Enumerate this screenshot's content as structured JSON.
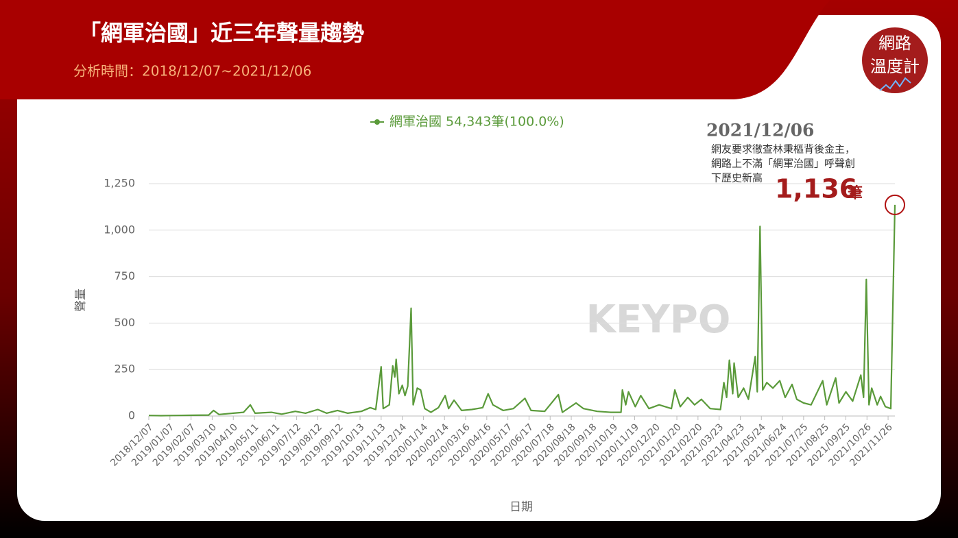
{
  "header": {
    "title": "「網軍治國」近三年聲量趨勢",
    "subtitle": "分析時間：2018/12/07~2021/12/06",
    "logo": [
      "網路",
      "溫度計"
    ]
  },
  "watermark": "KEYPO",
  "chart_data": {
    "type": "line",
    "x_label": "日期",
    "y_label": "聲量",
    "x": [
      "2018/12/07",
      "2018/12/25",
      "2019/01/15",
      "2019/02/10",
      "2019/03/05",
      "2019/03/12",
      "2019/03/20",
      "2019/04/10",
      "2019/04/25",
      "2019/05/05",
      "2019/05/12",
      "2019/06/05",
      "2019/06/20",
      "2019/07/10",
      "2019/07/25",
      "2019/08/12",
      "2019/08/25",
      "2019/09/10",
      "2019/09/25",
      "2019/10/15",
      "2019/10/28",
      "2019/11/05",
      "2019/11/13",
      "2019/11/16",
      "2019/11/25",
      "2019/11/30",
      "2019/12/03",
      "2019/12/05",
      "2019/12/09",
      "2019/12/14",
      "2019/12/18",
      "2019/12/22",
      "2019/12/27",
      "2019/12/30",
      "2020/01/05",
      "2020/01/10",
      "2020/01/16",
      "2020/01/25",
      "2020/02/05",
      "2020/02/15",
      "2020/02/20",
      "2020/02/28",
      "2020/03/10",
      "2020/03/25",
      "2020/04/10",
      "2020/04/18",
      "2020/04/25",
      "2020/05/10",
      "2020/05/25",
      "2020/06/11",
      "2020/06/20",
      "2020/07/10",
      "2020/07/30",
      "2020/08/05",
      "2020/08/25",
      "2020/09/05",
      "2020/09/25",
      "2020/10/15",
      "2020/10/30",
      "2020/11/01",
      "2020/11/06",
      "2020/11/10",
      "2020/11/20",
      "2020/11/28",
      "2020/12/10",
      "2020/12/25",
      "2021/01/12",
      "2021/01/17",
      "2021/01/25",
      "2021/02/05",
      "2021/02/15",
      "2021/02/25",
      "2021/03/10",
      "2021/03/25",
      "2021/03/30",
      "2021/04/03",
      "2021/04/07",
      "2021/04/12",
      "2021/04/14",
      "2021/04/20",
      "2021/04/28",
      "2021/05/05",
      "2021/05/15",
      "2021/05/18",
      "2021/05/22",
      "2021/05/26",
      "2021/06/01",
      "2021/06/10",
      "2021/06/20",
      "2021/06/28",
      "2021/07/08",
      "2021/07/15",
      "2021/07/25",
      "2021/08/05",
      "2021/08/22",
      "2021/08/28",
      "2021/09/10",
      "2021/09/15",
      "2021/09/25",
      "2021/10/05",
      "2021/10/17",
      "2021/10/21",
      "2021/10/25",
      "2021/10/29",
      "2021/11/02",
      "2021/11/10",
      "2021/11/15",
      "2021/11/22",
      "2021/11/30",
      "2021/12/06"
    ],
    "series": [
      {
        "name": "網軍治國 54,343筆(100.0%)",
        "color": "#5a9a3a",
        "values": [
          3,
          2,
          3,
          4,
          5,
          30,
          8,
          15,
          20,
          60,
          15,
          20,
          10,
          25,
          15,
          35,
          15,
          30,
          15,
          25,
          45,
          35,
          265,
          40,
          60,
          270,
          210,
          305,
          120,
          165,
          110,
          160,
          580,
          60,
          150,
          140,
          40,
          20,
          45,
          110,
          40,
          85,
          30,
          35,
          45,
          120,
          60,
          30,
          40,
          95,
          30,
          25,
          115,
          20,
          70,
          40,
          25,
          20,
          20,
          140,
          60,
          130,
          50,
          110,
          40,
          60,
          40,
          140,
          50,
          100,
          60,
          90,
          40,
          35,
          180,
          100,
          300,
          120,
          285,
          100,
          150,
          90,
          320,
          130,
          1020,
          140,
          180,
          150,
          190,
          100,
          170,
          90,
          70,
          60,
          190,
          60,
          205,
          70,
          130,
          80,
          220,
          100,
          735,
          60,
          150,
          60,
          105,
          50,
          40,
          1136
        ]
      }
    ],
    "xlim": [
      "2018/12/07",
      "2021/12/06"
    ],
    "xticks": [
      "2018/12/07",
      "2019/01/07",
      "2019/02/07",
      "2019/03/10",
      "2019/04/10",
      "2019/05/11",
      "2019/06/11",
      "2019/07/12",
      "2019/08/12",
      "2019/09/12",
      "2019/10/13",
      "2019/11/13",
      "2019/12/14",
      "2020/01/14",
      "2020/02/14",
      "2020/03/16",
      "2020/04/16",
      "2020/05/17",
      "2020/06/17",
      "2020/07/18",
      "2020/08/18",
      "2020/09/18",
      "2020/10/19",
      "2020/11/19",
      "2020/12/20",
      "2021/01/20",
      "2021/02/20",
      "2021/03/23",
      "2021/04/23",
      "2021/05/24",
      "2021/06/24",
      "2021/07/25",
      "2021/08/25",
      "2021/09/25",
      "2021/10/26",
      "2021/11/26"
    ],
    "ylim": [
      0,
      1250
    ],
    "yticks": [
      0,
      {
        "value": 250,
        "label": "250"
      },
      {
        "value": 500,
        "label": "500"
      },
      {
        "value": 750,
        "label": "750"
      },
      {
        "value": 1000,
        "label": "1,000"
      },
      {
        "value": 1250,
        "label": "1,250"
      }
    ],
    "grid": true,
    "annotation": {
      "date": "2021/12/06",
      "text_lines": [
        "網友要求徹查林秉樞背後金主，",
        "網路上不滿「網軍治國」呼聲創",
        "下歷史新高"
      ],
      "value_label": "1,136",
      "unit": "筆"
    }
  }
}
